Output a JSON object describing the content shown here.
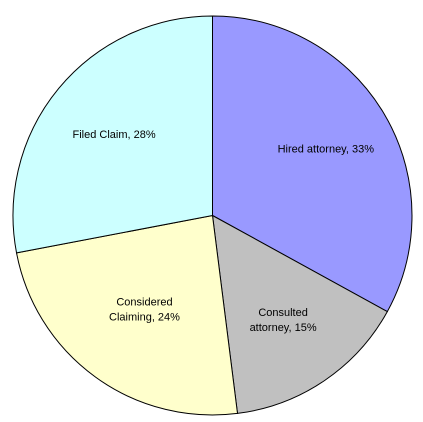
{
  "chart_data": {
    "type": "pie",
    "title": "",
    "start_angle_deg": 0,
    "direction": "clockwise",
    "slices": [
      {
        "label_lines": [
          "Hired attorney, 33%"
        ],
        "value": 33,
        "color": "#9999ff"
      },
      {
        "label_lines": [
          "Consulted",
          "attorney, 15%"
        ],
        "value": 15,
        "color": "#c0c0c0"
      },
      {
        "label_lines": [
          "Considered",
          "Claiming, 24%"
        ],
        "value": 24,
        "color": "#ffffcc"
      },
      {
        "label_lines": [
          "Filed Claim, 28%"
        ],
        "value": 28,
        "color": "#ccffff"
      }
    ]
  }
}
